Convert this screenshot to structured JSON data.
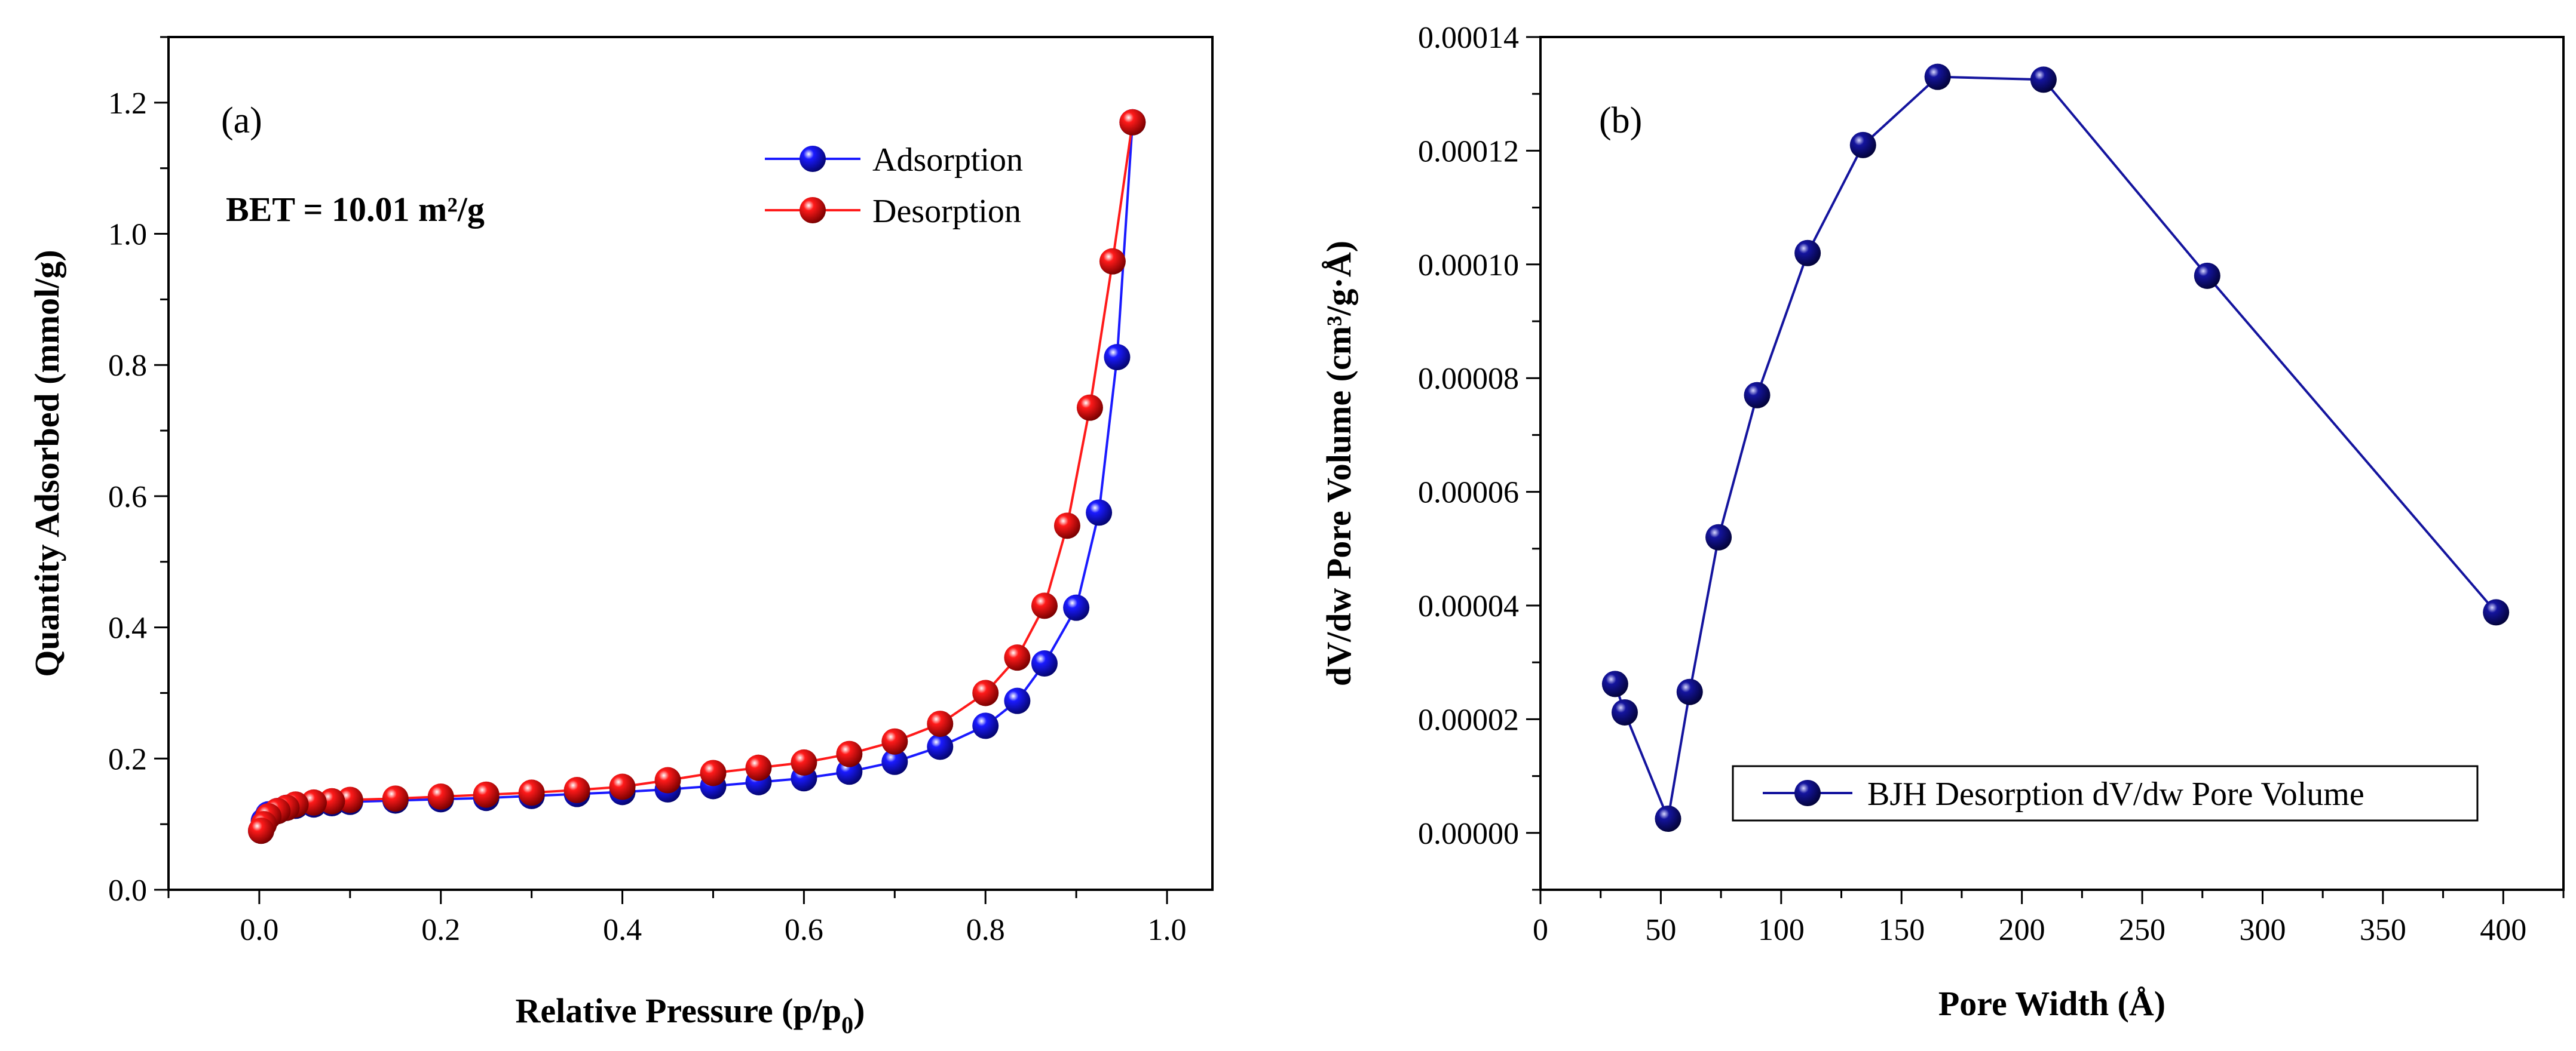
{
  "chart_data": [
    {
      "type": "line",
      "panel_label": "(a)",
      "title": "",
      "xlabel_main": "Relative Pressure (p/p",
      "xlabel_sub": "0",
      "xlabel_close": ")",
      "ylabel": "Quantity Adsorbed (mmol/g)",
      "xlim": [
        -0.1,
        1.05
      ],
      "ylim": [
        0.0,
        1.3
      ],
      "xticks": [
        0.0,
        0.2,
        0.4,
        0.6,
        0.8,
        1.0
      ],
      "xtick_labels": [
        "0.0",
        "0.2",
        "0.4",
        "0.6",
        "0.8",
        "1.0"
      ],
      "yticks": [
        0.0,
        0.2,
        0.4,
        0.6,
        0.8,
        1.0,
        1.2
      ],
      "ytick_labels": [
        "0.0",
        "0.2",
        "0.4",
        "0.6",
        "0.8",
        "1.0",
        "1.2"
      ],
      "annotation": "BET = 10.01 m²/g",
      "legend_position": "top-right",
      "series": [
        {
          "name": "Adsorption",
          "color": "#1a1aff",
          "x": [
            0.002,
            0.005,
            0.01,
            0.02,
            0.03,
            0.04,
            0.06,
            0.08,
            0.1,
            0.15,
            0.2,
            0.25,
            0.3,
            0.35,
            0.4,
            0.45,
            0.5,
            0.55,
            0.6,
            0.65,
            0.7,
            0.75,
            0.8,
            0.835,
            0.865,
            0.9,
            0.925,
            0.945,
            0.962
          ],
          "y": [
            0.09,
            0.105,
            0.115,
            0.12,
            0.125,
            0.128,
            0.13,
            0.132,
            0.134,
            0.136,
            0.138,
            0.14,
            0.143,
            0.146,
            0.149,
            0.153,
            0.158,
            0.164,
            0.17,
            0.18,
            0.195,
            0.218,
            0.25,
            0.288,
            0.345,
            0.43,
            0.575,
            0.812,
            1.17
          ]
        },
        {
          "name": "Desorption",
          "color": "#ff1a1a",
          "x": [
            0.962,
            0.94,
            0.915,
            0.89,
            0.865,
            0.835,
            0.8,
            0.75,
            0.7,
            0.65,
            0.6,
            0.55,
            0.5,
            0.45,
            0.4,
            0.35,
            0.3,
            0.25,
            0.2,
            0.15,
            0.1,
            0.08,
            0.06,
            0.04,
            0.03,
            0.02,
            0.01,
            0.005,
            0.002
          ],
          "y": [
            1.17,
            0.958,
            0.735,
            0.555,
            0.433,
            0.354,
            0.3,
            0.253,
            0.226,
            0.207,
            0.194,
            0.186,
            0.178,
            0.167,
            0.157,
            0.152,
            0.148,
            0.145,
            0.142,
            0.139,
            0.137,
            0.135,
            0.133,
            0.13,
            0.125,
            0.12,
            0.112,
            0.1,
            0.09
          ]
        }
      ]
    },
    {
      "type": "line",
      "panel_label": "(b)",
      "title": "",
      "xlabel": "Pore Width (Å)",
      "ylabel": "dV/dw Pore Volume (cm³/g·Å)",
      "xlim": [
        0,
        425
      ],
      "ylim": [
        -1e-05,
        0.00014
      ],
      "xticks": [
        0,
        50,
        100,
        150,
        200,
        250,
        300,
        350,
        400
      ],
      "xtick_labels": [
        "0",
        "50",
        "100",
        "150",
        "200",
        "250",
        "300",
        "350",
        "400"
      ],
      "yticks": [
        0.0,
        2e-05,
        4e-05,
        6e-05,
        8e-05,
        0.0001,
        0.00012,
        0.00014
      ],
      "ytick_labels": [
        "0.00000",
        "0.00002",
        "0.00004",
        "0.00006",
        "0.00008",
        "0.00010",
        "0.00012",
        "0.00014"
      ],
      "legend_position": "bottom-right",
      "series": [
        {
          "name": "BJH Desorption dV/dw Pore Volume",
          "color": "#14149e",
          "x": [
            31,
            35,
            53,
            62,
            74,
            90,
            111,
            134,
            165,
            209,
            277,
            397
          ],
          "y": [
            2.62e-05,
            2.12e-05,
            2.5e-06,
            2.48e-05,
            5.2e-05,
            7.7e-05,
            0.000102,
            0.000121,
            0.000133,
            0.0001325,
            9.8e-05,
            3.88e-05
          ]
        }
      ]
    }
  ]
}
